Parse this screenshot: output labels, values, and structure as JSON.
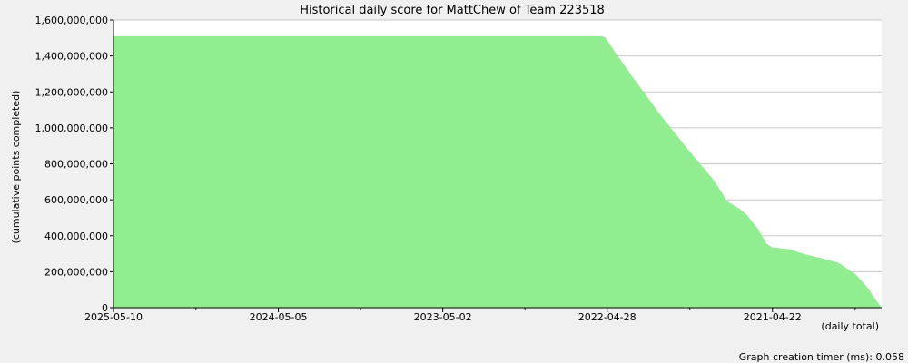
{
  "chart_data": {
    "type": "area",
    "title": "Historical daily score for MattChew of Team 223518",
    "ylabel": "(cumulative points completed)",
    "xlabel": "(daily total)",
    "ylim": [
      0,
      1600000000
    ],
    "y_ticks": [
      0,
      200000000,
      400000000,
      600000000,
      800000000,
      1000000000,
      1200000000,
      1400000000,
      1600000000
    ],
    "y_tick_labels": [
      "0",
      "200,000,000",
      "400,000,000",
      "600,000,000",
      "800,000,000",
      "1,000,000,000",
      "1,200,000,000",
      "1,400,000,000",
      "1,600,000,000"
    ],
    "x_axis_order": "newest-to-oldest",
    "x_range": [
      "2025-05-10",
      "2020-08-20"
    ],
    "x_tick_labels": [
      "2025-05-10",
      "2024-05-05",
      "2023-05-02",
      "2022-04-28",
      "2021-04-22"
    ],
    "x_tick_dates": [
      "2025-05-10",
      "2024-05-05",
      "2023-05-02",
      "2022-04-28",
      "2021-04-22"
    ],
    "grid": true,
    "fill_color": "#90ee90",
    "series": [
      {
        "x": [
          "2025-05-10",
          "2022-05-10",
          "2022-05-01",
          "2022-04-10",
          "2022-03-01",
          "2022-01-01",
          "2021-11-01",
          "2021-09-01",
          "2021-08-01",
          "2021-07-05",
          "2021-06-20",
          "2021-05-25",
          "2021-05-05",
          "2021-04-22",
          "2021-03-15",
          "2021-02-05",
          "2020-12-25",
          "2020-11-25",
          "2020-10-15",
          "2020-09-20",
          "2020-09-01",
          "2020-08-20"
        ],
        "values": [
          1510000000,
          1510000000,
          1500000000,
          1420000000,
          1280000000,
          1080000000,
          890000000,
          710000000,
          590000000,
          550000000,
          520000000,
          440000000,
          355000000,
          335000000,
          325000000,
          295000000,
          270000000,
          250000000,
          180000000,
          110000000,
          40000000,
          0
        ]
      }
    ]
  },
  "footer": {
    "timer_text": "Graph creation timer (ms): 0.058"
  }
}
